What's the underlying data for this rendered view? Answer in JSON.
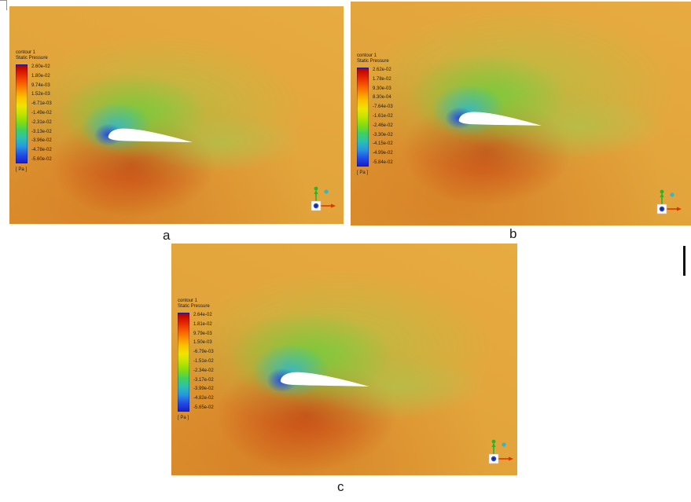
{
  "figure": {
    "description": "Static pressure contour plots around an airfoil (three cases)",
    "panels": [
      {
        "id": "a",
        "label": "a",
        "legend": {
          "title_line1": "contour 1",
          "title_line2": "Static Pressure",
          "units": "[ Pa ]",
          "values": [
            "2.60e-02",
            "1.80e-02",
            "9.74e-03",
            "1.52e-03",
            "-6.71e-03",
            "-1.49e-02",
            "-2.31e-02",
            "-3.13e-02",
            "-3.96e-02",
            "-4.78e-02",
            "-5.60e-02"
          ]
        }
      },
      {
        "id": "b",
        "label": "b",
        "legend": {
          "title_line1": "contour 1",
          "title_line2": "Static Pressure",
          "units": "[ Pa ]",
          "values": [
            "2.62e-02",
            "1.78e-02",
            "9.30e-03",
            "8.30e-04",
            "-7.64e-03",
            "-1.61e-02",
            "-2.46e-02",
            "-3.30e-02",
            "-4.15e-02",
            "-4.99e-02",
            "-5.84e-02"
          ]
        }
      },
      {
        "id": "c",
        "label": "c",
        "legend": {
          "title_line1": "contour 1",
          "title_line2": "Static Pressure",
          "units": "[ Pa ]",
          "values": [
            "2.64e-02",
            "1.81e-02",
            "9.79e-03",
            "1.50e-03",
            "-6.79e-03",
            "-1.51e-02",
            "-2.34e-02",
            "-3.17e-02",
            "-3.99e-02",
            "-4.82e-02",
            "-5.65e-02"
          ]
        }
      }
    ]
  },
  "colors": {
    "field_orange": "#e2a43b",
    "stagnation_red": "#c63c10",
    "suction_green": "#6ecd3c",
    "suction_cyan": "#2db9cd",
    "suction_blue": "#2346e1",
    "airfoil_white": "#ffffff",
    "axis_x_red": "#e03000",
    "axis_y_green": "#28b428",
    "axis_z_blue": "#2040d0",
    "iso_ball_cyan": "#30b8c8",
    "colorbar_stops": [
      "#b00000",
      "#e02000",
      "#f55300",
      "#fb8c00",
      "#fcc200",
      "#f0e400",
      "#c0e400",
      "#84dc10",
      "#40d060",
      "#2cc0b0",
      "#2898e0",
      "#2350e8",
      "#1a20cc"
    ]
  }
}
